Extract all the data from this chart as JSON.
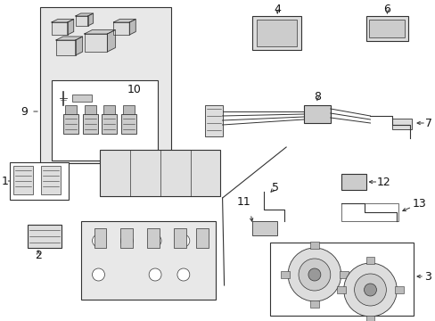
{
  "bg_color": "#ffffff",
  "line_color": "#333333",
  "shaded_fill": "#e8e8e8",
  "light_fill": "#dddddd",
  "mid_fill": "#cccccc",
  "dark_fill": "#aaaaaa"
}
